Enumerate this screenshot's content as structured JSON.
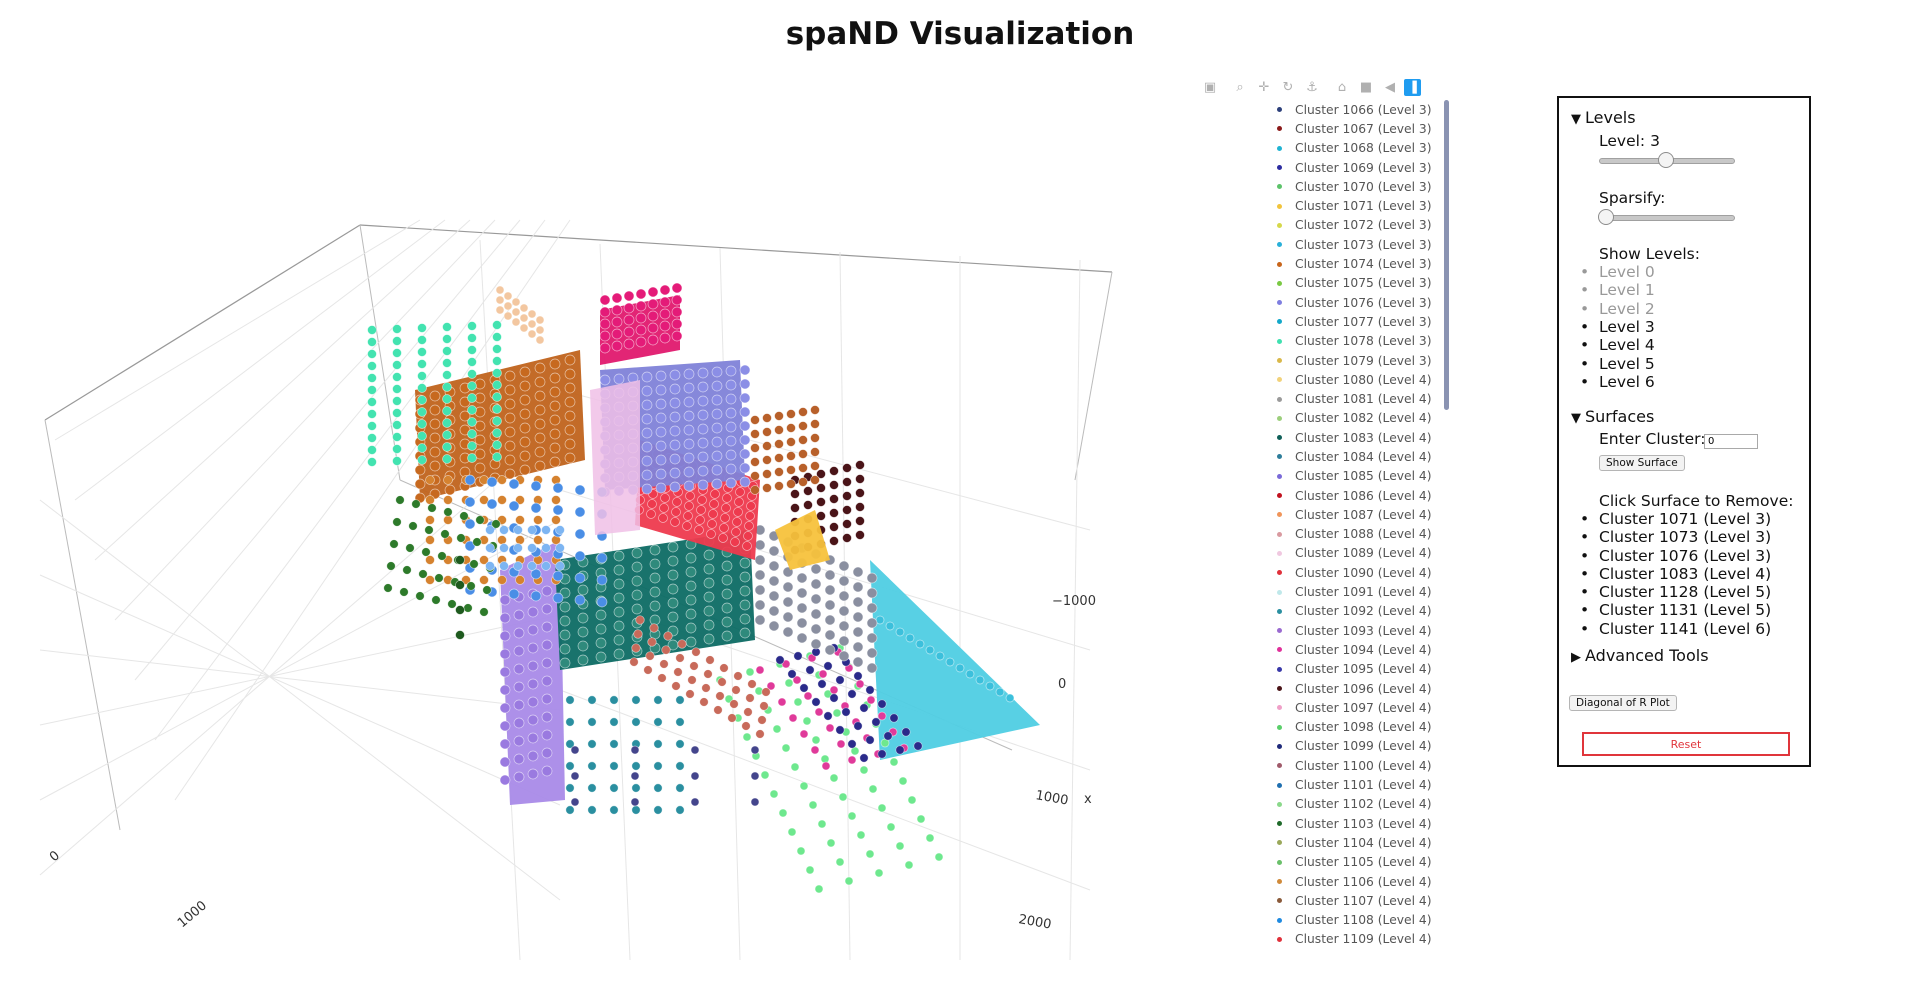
{
  "page": {
    "title": "spaND Visualization"
  },
  "modebar": {
    "buttons": [
      {
        "name": "camera-icon",
        "glyph": "▣"
      },
      {
        "name": "zoom-icon",
        "glyph": "⌕"
      },
      {
        "name": "pan-icon",
        "glyph": "✛"
      },
      {
        "name": "orbit-rotation-icon",
        "glyph": "↻"
      },
      {
        "name": "turntable-rotation-icon",
        "glyph": "⚓"
      },
      {
        "name": "reset-camera-icon",
        "glyph": "⌂"
      },
      {
        "name": "save-camera-icon",
        "glyph": "■"
      },
      {
        "name": "toggle-hover-icon",
        "glyph": "◀"
      },
      {
        "name": "plotly-logo-icon",
        "glyph": "▐"
      }
    ]
  },
  "axes": {
    "x": {
      "label": "x",
      "ticks": [
        "−1000",
        "0",
        "1000",
        "2000"
      ]
    },
    "y": {
      "ticks": [
        "0",
        "1000"
      ]
    }
  },
  "legend": {
    "items": [
      {
        "label": "Cluster 1066 (Level 3)",
        "color": "#2c3f7a"
      },
      {
        "label": "Cluster 1067 (Level 3)",
        "color": "#8b1a1a"
      },
      {
        "label": "Cluster 1068 (Level 3)",
        "color": "#1fb3d2"
      },
      {
        "label": "Cluster 1069 (Level 3)",
        "color": "#2c2ca0"
      },
      {
        "label": "Cluster 1070 (Level 3)",
        "color": "#5cc36a"
      },
      {
        "label": "Cluster 1071 (Level 3)",
        "color": "#f2c43c"
      },
      {
        "label": "Cluster 1072 (Level 3)",
        "color": "#d6d84a"
      },
      {
        "label": "Cluster 1073 (Level 3)",
        "color": "#29b0d9"
      },
      {
        "label": "Cluster 1074 (Level 3)",
        "color": "#c8651b"
      },
      {
        "label": "Cluster 1075 (Level 3)",
        "color": "#7ac943"
      },
      {
        "label": "Cluster 1076 (Level 3)",
        "color": "#7e7ee0"
      },
      {
        "label": "Cluster 1077 (Level 3)",
        "color": "#13a8c9"
      },
      {
        "label": "Cluster 1078 (Level 3)",
        "color": "#3fe0b0"
      },
      {
        "label": "Cluster 1079 (Level 3)",
        "color": "#d9b84a"
      },
      {
        "label": "Cluster 1080 (Level 4)",
        "color": "#f2d27a"
      },
      {
        "label": "Cluster 1081 (Level 4)",
        "color": "#9a9a9a"
      },
      {
        "label": "Cluster 1082 (Level 4)",
        "color": "#9ccf7c"
      },
      {
        "label": "Cluster 1083 (Level 4)",
        "color": "#0f5f58"
      },
      {
        "label": "Cluster 1084 (Level 4)",
        "color": "#2d7d9a"
      },
      {
        "label": "Cluster 1085 (Level 4)",
        "color": "#7a6ad8"
      },
      {
        "label": "Cluster 1086 (Level 4)",
        "color": "#c1121f"
      },
      {
        "label": "Cluster 1087 (Level 4)",
        "color": "#f0955a"
      },
      {
        "label": "Cluster 1088 (Level 4)",
        "color": "#d99aa0"
      },
      {
        "label": "Cluster 1089 (Level 4)",
        "color": "#f0c8e0"
      },
      {
        "label": "Cluster 1090 (Level 4)",
        "color": "#e0303a"
      },
      {
        "label": "Cluster 1091 (Level 4)",
        "color": "#bfe8ea"
      },
      {
        "label": "Cluster 1092 (Level 4)",
        "color": "#2a8fa0"
      },
      {
        "label": "Cluster 1093 (Level 4)",
        "color": "#9a6ad0"
      },
      {
        "label": "Cluster 1094 (Level 4)",
        "color": "#e0309a"
      },
      {
        "label": "Cluster 1095 (Level 4)",
        "color": "#3838a8"
      },
      {
        "label": "Cluster 1096 (Level 4)",
        "color": "#4a1418"
      },
      {
        "label": "Cluster 1097 (Level 4)",
        "color": "#f0a0c8"
      },
      {
        "label": "Cluster 1098 (Level 4)",
        "color": "#5acf6a"
      },
      {
        "label": "Cluster 1099 (Level 4)",
        "color": "#1f2a7a"
      },
      {
        "label": "Cluster 1100 (Level 4)",
        "color": "#a05a6a"
      },
      {
        "label": "Cluster 1101 (Level 4)",
        "color": "#1f6fb0"
      },
      {
        "label": "Cluster 1102 (Level 4)",
        "color": "#8ad88a"
      },
      {
        "label": "Cluster 1103 (Level 4)",
        "color": "#1f6a2a"
      },
      {
        "label": "Cluster 1104 (Level 4)",
        "color": "#9aa85a"
      },
      {
        "label": "Cluster 1105 (Level 4)",
        "color": "#6ac06a"
      },
      {
        "label": "Cluster 1106 (Level 4)",
        "color": "#d08a3a"
      },
      {
        "label": "Cluster 1107 (Level 4)",
        "color": "#8a5a3a"
      },
      {
        "label": "Cluster 1108 (Level 4)",
        "color": "#1f8ae0"
      },
      {
        "label": "Cluster 1109 (Level 4)",
        "color": "#e0303a"
      }
    ]
  },
  "panel": {
    "levels": {
      "header": "Levels",
      "level_label": "Level: 3",
      "level_value": 3,
      "level_max": 6,
      "sparsify_label": "Sparsify:",
      "sparsify_value": 0,
      "show_levels_label": "Show Levels:",
      "hidden_levels": [
        "Level 0",
        "Level 1",
        "Level 2"
      ],
      "shown_levels": [
        "Level 3",
        "Level 4",
        "Level 5",
        "Level 6"
      ]
    },
    "surfaces": {
      "header": "Surfaces",
      "enter_cluster_label": "Enter Cluster:",
      "cluster_input_value": "0",
      "show_surface_label": "Show Surface",
      "click_remove_label": "Click Surface to Remove:",
      "items": [
        "Cluster 1071 (Level 3)",
        "Cluster 1073 (Level 3)",
        "Cluster 1076 (Level 3)",
        "Cluster 1083 (Level 4)",
        "Cluster 1128 (Level 5)",
        "Cluster 1131 (Level 5)",
        "Cluster 1141 (Level 6)"
      ]
    },
    "advanced": {
      "header": "Advanced Tools"
    },
    "diagonal_button": "Diagonal of R Plot",
    "reset_button": "Reset"
  }
}
